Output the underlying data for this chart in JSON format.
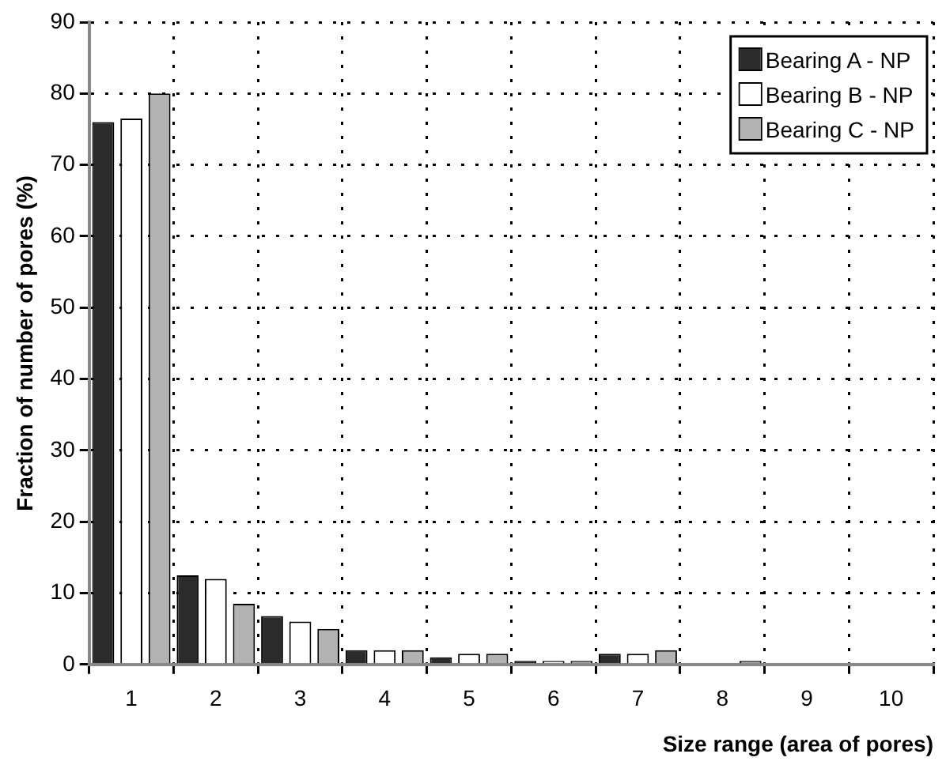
{
  "chart_data": {
    "type": "bar",
    "xlabel": "Size range (area of pores)",
    "ylabel": "Fraction of number of pores (%)",
    "categories": [
      "1",
      "2",
      "3",
      "4",
      "5",
      "6",
      "7",
      "8",
      "9",
      "10"
    ],
    "series": [
      {
        "name": "Bearing A - NP",
        "color": "#2b2b2b",
        "values": [
          76,
          12.5,
          6.8,
          2,
          1,
          0.5,
          1.5,
          0,
          0,
          0
        ]
      },
      {
        "name": "Bearing B - NP",
        "color": "#ffffff",
        "values": [
          76.5,
          12,
          6,
          2,
          1.5,
          0.5,
          1.5,
          0,
          0,
          0
        ]
      },
      {
        "name": "Bearing C - NP",
        "color": "#b2b2b2",
        "values": [
          80,
          8.5,
          5,
          2,
          1.5,
          0.5,
          2,
          0.5,
          0,
          0
        ]
      }
    ],
    "ylim": [
      0,
      90
    ],
    "yticks": [
      0,
      10,
      20,
      30,
      40,
      50,
      60,
      70,
      80,
      90
    ],
    "grid": true,
    "legend": "top right"
  }
}
